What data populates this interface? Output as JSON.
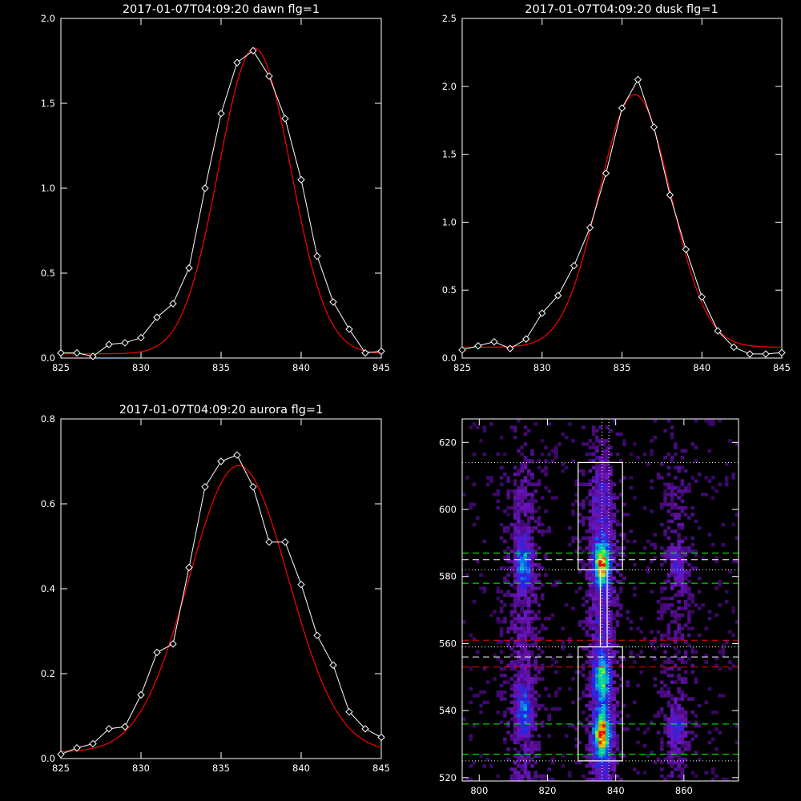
{
  "chart_data": [
    {
      "type": "line",
      "title": "2017-01-07T04:09:20 dawn flg=1",
      "xlim": [
        825,
        845
      ],
      "ylim": [
        0,
        2.0
      ],
      "xticks": [
        825,
        830,
        835,
        840,
        845
      ],
      "yticks": [
        0.0,
        0.5,
        1.0,
        1.5,
        2.0
      ],
      "ytick_labels": [
        "0.0",
        "0.5",
        "1.0",
        "1.5",
        "2.0"
      ],
      "grid": false,
      "series": [
        {
          "color": "#ffffff",
          "marker": "diamond",
          "x": [
            825,
            826,
            827,
            828,
            829,
            830,
            831,
            832,
            833,
            834,
            835,
            836,
            837,
            838,
            839,
            840,
            841,
            842,
            843,
            844,
            845
          ],
          "y": [
            0.03,
            0.03,
            0.01,
            0.08,
            0.09,
            0.12,
            0.24,
            0.32,
            0.53,
            1.0,
            1.44,
            1.74,
            1.81,
            1.66,
            1.41,
            1.05,
            0.6,
            0.33,
            0.17,
            0.03,
            0.04
          ]
        },
        {
          "color": "#ff0000",
          "type": "gaussian-fit",
          "amplitude": 1.8,
          "center": 837.1,
          "sigma": 2.25,
          "offset": 0.025
        }
      ]
    },
    {
      "type": "line",
      "title": "2017-01-07T04:09:20 dusk flg=1",
      "xlim": [
        825,
        845
      ],
      "ylim": [
        0,
        2.5
      ],
      "xticks": [
        825,
        830,
        835,
        840,
        845
      ],
      "yticks": [
        0.0,
        0.5,
        1.0,
        1.5,
        2.0,
        2.5
      ],
      "ytick_labels": [
        "0.0",
        "0.5",
        "1.0",
        "1.5",
        "2.0",
        "2.5"
      ],
      "grid": false,
      "series": [
        {
          "color": "#ffffff",
          "marker": "diamond",
          "x": [
            825,
            826,
            827,
            828,
            829,
            830,
            831,
            832,
            833,
            834,
            835,
            836,
            837,
            838,
            839,
            840,
            841,
            842,
            843,
            844,
            845
          ],
          "y": [
            0.06,
            0.09,
            0.12,
            0.07,
            0.14,
            0.33,
            0.46,
            0.68,
            0.96,
            1.36,
            1.84,
            2.05,
            1.7,
            1.2,
            0.8,
            0.45,
            0.2,
            0.08,
            0.03,
            0.03,
            0.04
          ]
        },
        {
          "color": "#ff0000",
          "type": "gaussian-fit",
          "amplitude": 1.86,
          "center": 835.8,
          "sigma": 2.25,
          "offset": 0.08
        }
      ]
    },
    {
      "type": "line",
      "title": "2017-01-07T04:09:20 aurora flg=1",
      "xlim": [
        825,
        845
      ],
      "ylim": [
        0,
        0.8
      ],
      "xticks": [
        825,
        830,
        835,
        840,
        845
      ],
      "yticks": [
        0.0,
        0.2,
        0.4,
        0.6,
        0.8
      ],
      "ytick_labels": [
        "0.0",
        "0.2",
        "0.4",
        "0.6",
        "0.8"
      ],
      "grid": false,
      "series": [
        {
          "color": "#ffffff",
          "marker": "diamond",
          "x": [
            825,
            826,
            827,
            828,
            829,
            830,
            831,
            832,
            833,
            834,
            835,
            836,
            837,
            838,
            839,
            840,
            841,
            842,
            843,
            844,
            845
          ],
          "y": [
            0.01,
            0.025,
            0.035,
            0.07,
            0.075,
            0.15,
            0.25,
            0.27,
            0.45,
            0.64,
            0.7,
            0.715,
            0.64,
            0.51,
            0.51,
            0.41,
            0.29,
            0.22,
            0.11,
            0.07,
            0.05
          ]
        },
        {
          "color": "#ff0000",
          "type": "gaussian-fit",
          "amplitude": 0.675,
          "center": 836.1,
          "sigma": 3.1,
          "offset": 0.015
        }
      ]
    },
    {
      "type": "heatmap",
      "title": "",
      "xlim": [
        795,
        876
      ],
      "ylim": [
        519,
        627
      ],
      "xticks": [
        800,
        820,
        840,
        860
      ],
      "yticks": [
        520,
        540,
        560,
        580,
        600,
        620
      ],
      "colormap": "rainbow",
      "features": [
        {
          "x": 813,
          "y": 584,
          "intensity": 0.55
        },
        {
          "x": 813,
          "y": 540,
          "intensity": 0.45
        },
        {
          "x": 836,
          "y": 584,
          "intensity": 0.9
        },
        {
          "x": 836,
          "y": 550,
          "intensity": 0.6
        },
        {
          "x": 836,
          "y": 533,
          "intensity": 1.0
        },
        {
          "x": 858,
          "y": 584,
          "intensity": 0.3
        },
        {
          "x": 858,
          "y": 535,
          "intensity": 0.35
        }
      ],
      "vertical_dotted_lines_x": [
        836,
        838
      ],
      "boxes": [
        {
          "x0": 829,
          "x1": 842,
          "y0": 582,
          "y1": 614
        },
        {
          "x0": 829,
          "x1": 842,
          "y0": 525,
          "y1": 559
        },
        {
          "x0": 835.5,
          "x1": 837.5,
          "y0": 559,
          "y1": 582
        }
      ],
      "hlines": [
        {
          "y": 614,
          "color": "#ffffff",
          "style": "dotted"
        },
        {
          "y": 587,
          "color": "#00ff00",
          "style": "dashed"
        },
        {
          "y": 585,
          "color": "#ffffff",
          "style": "dashed"
        },
        {
          "y": 582,
          "color": "#ffffff",
          "style": "dotted"
        },
        {
          "y": 578,
          "color": "#00ff00",
          "style": "dashed"
        },
        {
          "y": 561,
          "color": "#ff0000",
          "style": "dashed"
        },
        {
          "y": 559,
          "color": "#ffffff",
          "style": "dotted"
        },
        {
          "y": 556,
          "color": "#ffffff",
          "style": "dashed"
        },
        {
          "y": 553,
          "color": "#ff0000",
          "style": "dashed"
        },
        {
          "y": 536,
          "color": "#00ff00",
          "style": "dashed"
        },
        {
          "y": 527,
          "color": "#00ff00",
          "style": "dashed"
        },
        {
          "y": 525,
          "color": "#ffffff",
          "style": "dotted"
        }
      ]
    }
  ]
}
